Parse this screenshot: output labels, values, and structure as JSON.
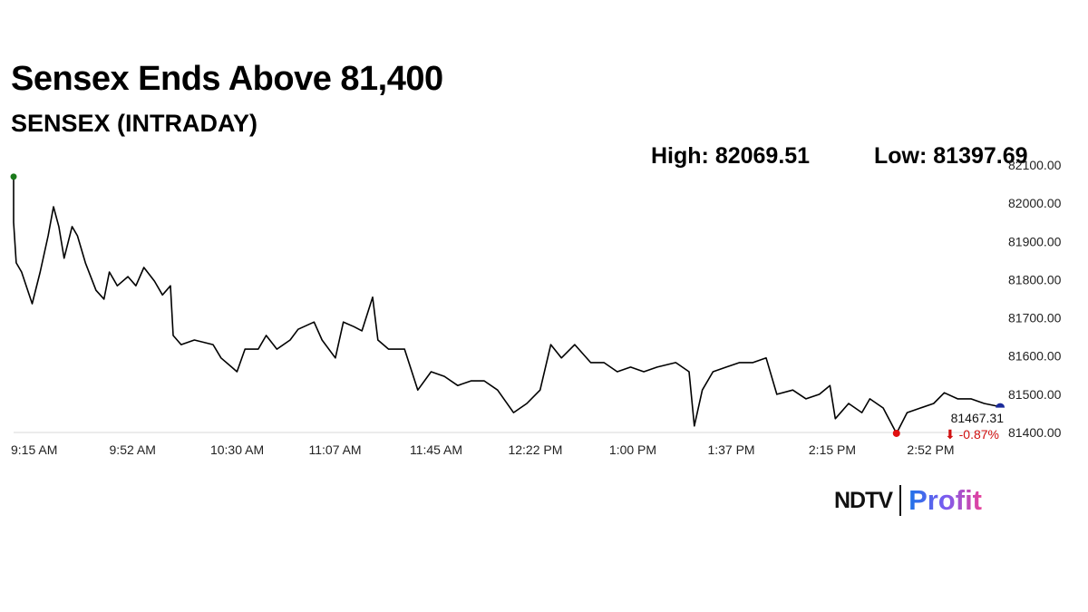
{
  "title": "Sensex Ends Above 81,400",
  "subtitle": "SENSEX (INTRADAY)",
  "high_label": "High: 82069.51",
  "low_label": "Low: 81397.69",
  "last_value": "81467.31",
  "change": "⬇ -0.87%",
  "logo": {
    "left": "NDTV",
    "right": "Profit"
  },
  "colors": {
    "line": "#000000",
    "open_dot": "#1a7a1a",
    "low_dot": "#e01010",
    "last_dot": "#1a2a9a",
    "change": "#d01010"
  },
  "chart_data": {
    "type": "line",
    "title": "SENSEX (INTRADAY)",
    "xlabel": "",
    "ylabel": "",
    "ylim": [
      81400,
      82100
    ],
    "yticks": [
      "82100.00",
      "82000.00",
      "81900.00",
      "81800.00",
      "81700.00",
      "81600.00",
      "81500.00",
      "81400.00"
    ],
    "xticks": [
      {
        "t": "09:15",
        "label": "9:15 AM"
      },
      {
        "t": "09:52",
        "label": "9:52 AM"
      },
      {
        "t": "10:30",
        "label": "10:30 AM"
      },
      {
        "t": "11:07",
        "label": "11:07 AM"
      },
      {
        "t": "11:45",
        "label": "11:45 AM"
      },
      {
        "t": "12:22",
        "label": "12:22 PM"
      },
      {
        "t": "13:00",
        "label": "1:00 PM"
      },
      {
        "t": "13:37",
        "label": "1:37 PM"
      },
      {
        "t": "14:15",
        "label": "2:15 PM"
      },
      {
        "t": "14:52",
        "label": "2:52 PM"
      }
    ],
    "grid": false,
    "series": [
      {
        "x": [
          "09:15",
          "09:15",
          "09:16",
          "09:18",
          "09:22",
          "09:25",
          "09:28",
          "09:30",
          "09:32",
          "09:34",
          "09:37",
          "09:39",
          "09:42",
          "09:46",
          "09:49",
          "09:51",
          "09:54",
          "09:58",
          "10:01",
          "10:04",
          "10:08",
          "10:11",
          "10:14",
          "10:15",
          "10:18",
          "10:23",
          "10:30",
          "10:33",
          "10:39",
          "10:42",
          "10:47",
          "10:50",
          "10:54",
          "10:59",
          "11:02",
          "11:08",
          "11:11",
          "11:16",
          "11:19",
          "11:23",
          "11:26",
          "11:30",
          "11:32",
          "11:36",
          "11:42",
          "11:47",
          "11:52",
          "11:57",
          "12:02",
          "12:07",
          "12:12",
          "12:17",
          "12:23",
          "12:28",
          "12:33",
          "12:37",
          "12:41",
          "12:46",
          "12:52",
          "12:57",
          "13:02",
          "13:07",
          "13:12",
          "13:17",
          "13:24",
          "13:29",
          "13:31",
          "13:34",
          "13:38",
          "13:43",
          "13:48",
          "13:53",
          "13:58",
          "14:02",
          "14:08",
          "14:13",
          "14:18",
          "14:22",
          "14:24",
          "14:29",
          "14:34",
          "14:37",
          "14:42",
          "14:47",
          "14:51",
          "14:56",
          "15:01",
          "15:05",
          "15:10",
          "15:15",
          "15:20",
          "15:26"
        ],
        "y": [
          82069.51,
          81950,
          81844,
          81820,
          81737,
          81820,
          81915,
          81991,
          81939,
          81856,
          81939,
          81915,
          81844,
          81772,
          81749,
          81820,
          81784,
          81808,
          81784,
          81832,
          81796,
          81760,
          81784,
          81654,
          81630,
          81642,
          81630,
          81595,
          81559,
          81618,
          81618,
          81654,
          81618,
          81642,
          81670,
          81689,
          81642,
          81595,
          81689,
          81677,
          81666,
          81754,
          81642,
          81618,
          81618,
          81511,
          81559,
          81547,
          81523,
          81535,
          81535,
          81511,
          81452,
          81476,
          81511,
          81630,
          81595,
          81630,
          81583,
          81583,
          81559,
          81571,
          81559,
          81571,
          81583,
          81559,
          81417,
          81511,
          81559,
          81571,
          81583,
          81583,
          81595,
          81500,
          81511,
          81488,
          81500,
          81523,
          81436,
          81476,
          81452,
          81488,
          81464,
          81397.69,
          81452,
          81464,
          81476,
          81504,
          81488,
          81488,
          81476,
          81467.31
        ]
      }
    ]
  }
}
